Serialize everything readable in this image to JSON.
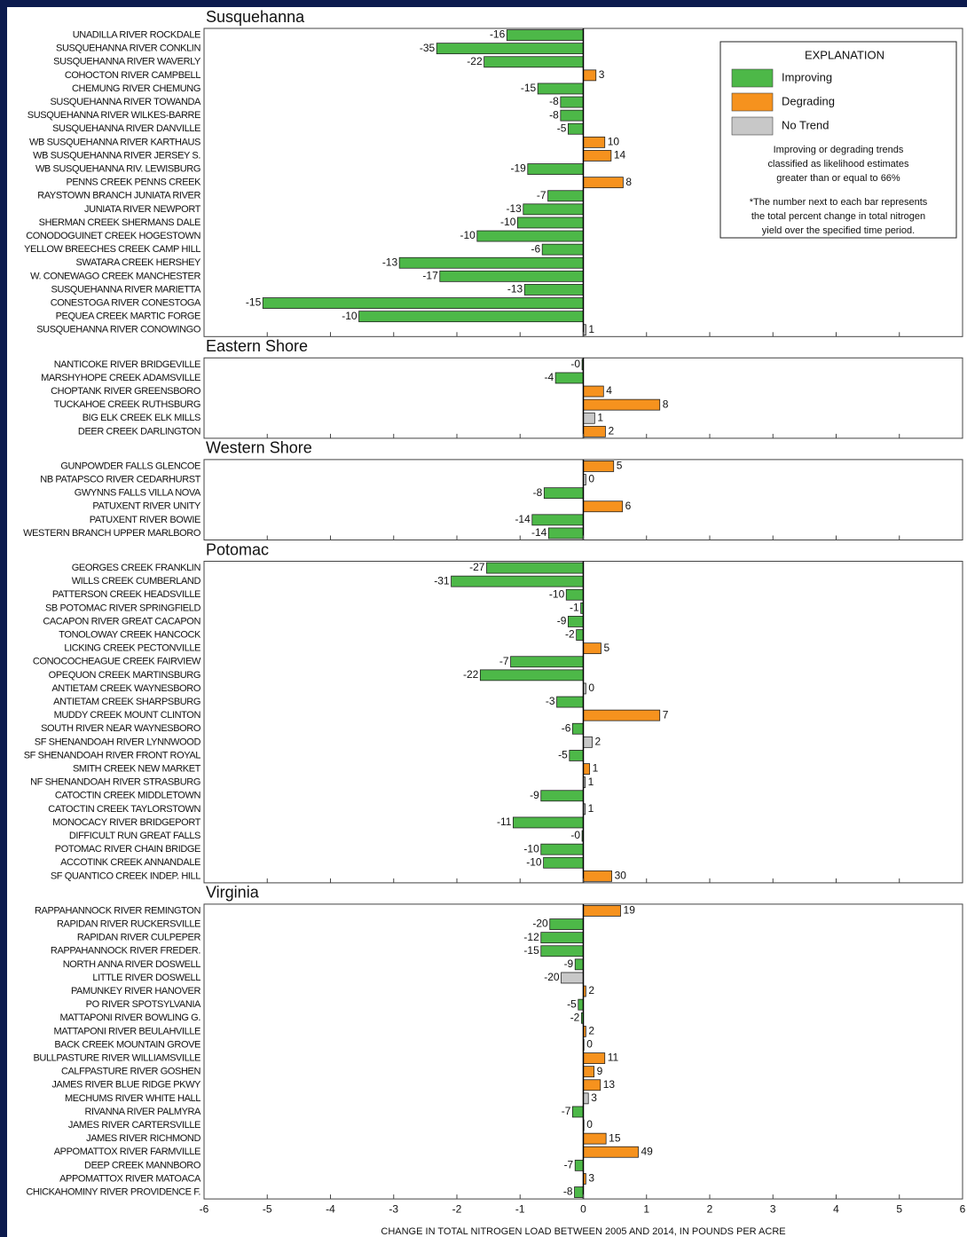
{
  "chart_data": [
    {
      "type": "bar",
      "orientation": "horizontal",
      "title": "Susquehanna",
      "categories": [
        "UNADILLA RIVER ROCKDALE",
        "SUSQUEHANNA RIVER CONKLIN",
        "SUSQUEHANNA RIVER WAVERLY",
        "COHOCTON RIVER CAMPBELL",
        "CHEMUNG RIVER CHEMUNG",
        "SUSQUEHANNA RIVER TOWANDA",
        "SUSQUEHANNA RIVER WILKES-BARRE",
        "SUSQUEHANNA RIVER DANVILLE",
        "WB SUSQUEHANNA RIVER KARTHAUS",
        "WB SUSQUEHANNA RIVER JERSEY S.",
        "WB SUSQUEHANNA RIV. LEWISBURG",
        "PENNS CREEK  PENNS CREEK",
        "RAYSTOWN BRANCH JUNIATA RIVER",
        "JUNIATA RIVER NEWPORT",
        "SHERMAN CREEK SHERMANS DALE",
        "CONODOGUINET CREEK HOGESTOWN",
        "YELLOW BREECHES CREEK CAMP HILL",
        "SWATARA CREEK HERSHEY",
        "W. CONEWAGO CREEK MANCHESTER",
        "SUSQUEHANNA RIVER MARIETTA",
        "CONESTOGA RIVER CONESTOGA",
        "PEQUEA CREEK MARTIC FORGE",
        "SUSQUEHANNA RIVER CONOWINGO"
      ],
      "values": [
        -1.21,
        -2.32,
        -1.57,
        0.2,
        -0.72,
        -0.36,
        -0.36,
        -0.24,
        0.34,
        0.44,
        -0.88,
        0.63,
        -0.56,
        -0.95,
        -1.04,
        -1.68,
        -0.65,
        -2.91,
        -2.27,
        -0.93,
        -5.07,
        -3.55,
        0.04
      ],
      "percent_labels": [
        "-16",
        "-35",
        "-22",
        "3",
        "-15",
        "-8",
        "-8",
        "-5",
        "10",
        "14",
        "-19",
        "8",
        "-7",
        "-13",
        "-10",
        "-10",
        "-6",
        "-13",
        "-17",
        "-13",
        "-15",
        "-10",
        "1"
      ],
      "colors": [
        "#4db848",
        "#4db848",
        "#4db848",
        "#f6921e",
        "#4db848",
        "#4db848",
        "#4db848",
        "#4db848",
        "#f6921e",
        "#f6921e",
        "#4db848",
        "#f6921e",
        "#4db848",
        "#4db848",
        "#4db848",
        "#4db848",
        "#4db848",
        "#4db848",
        "#4db848",
        "#4db848",
        "#4db848",
        "#4db848",
        "#c8c8c8"
      ],
      "xlim": [
        -6,
        6
      ],
      "xticks": [
        -6,
        -5,
        -4,
        -3,
        -2,
        -1,
        0,
        1,
        2,
        3,
        4,
        5,
        6
      ],
      "legend": {
        "title": "EXPLANATION",
        "entries": [
          {
            "name": "Improving",
            "color": "#4db848"
          },
          {
            "name": "Degrading",
            "color": "#f6921e"
          },
          {
            "name": "No Trend",
            "color": "#c8c8c8"
          }
        ],
        "notes": [
          [
            "Improving or degrading trends",
            "classified as likelihood estimates",
            "greater than or equal to 66%"
          ],
          [
            "*The number next to each bar represents",
            "the total percent change in total nitrogen",
            "yield over the specified time period."
          ]
        ]
      }
    },
    {
      "type": "bar",
      "orientation": "horizontal",
      "title": "Eastern Shore",
      "categories": [
        "NANTICOKE RIVER BRIDGEVILLE",
        "MARSHYHOPE CREEK ADAMSVILLE",
        "CHOPTANK RIVER GREENSBORO",
        "TUCKAHOE CREEK RUTHSBURG",
        "BIG ELK CREEK ELK MILLS",
        "DEER CREEK DARLINGTON"
      ],
      "values": [
        -0.02,
        -0.44,
        0.32,
        1.21,
        0.18,
        0.35
      ],
      "percent_labels": [
        "-0",
        "-4",
        "4",
        "8",
        "1",
        "2"
      ],
      "colors": [
        "#4db848",
        "#4db848",
        "#f6921e",
        "#f6921e",
        "#c8c8c8",
        "#f6921e"
      ],
      "xlim": [
        -6,
        6
      ],
      "xticks": [
        -6,
        -5,
        -4,
        -3,
        -2,
        -1,
        0,
        1,
        2,
        3,
        4,
        5,
        6
      ]
    },
    {
      "type": "bar",
      "orientation": "horizontal",
      "title": "Western Shore",
      "categories": [
        "GUNPOWDER FALLS GLENCOE",
        "NB PATAPSCO RIVER CEDARHURST",
        "GWYNNS FALLS VILLA NOVA",
        "PATUXENT RIVER UNITY",
        "PATUXENT RIVER BOWIE",
        "WESTERN BRANCH UPPER MARLBORO"
      ],
      "values": [
        0.48,
        0.04,
        -0.62,
        0.62,
        -0.81,
        -0.55
      ],
      "percent_labels": [
        "5",
        "0",
        "-8",
        "6",
        "-14",
        "-14"
      ],
      "colors": [
        "#f6921e",
        "#c8c8c8",
        "#4db848",
        "#f6921e",
        "#4db848",
        "#4db848"
      ],
      "xlim": [
        -6,
        6
      ],
      "xticks": [
        -6,
        -5,
        -4,
        -3,
        -2,
        -1,
        0,
        1,
        2,
        3,
        4,
        5,
        6
      ]
    },
    {
      "type": "bar",
      "orientation": "horizontal",
      "title": "Potomac",
      "categories": [
        "GEORGES CREEK FRANKLIN",
        "WILLS CREEK CUMBERLAND",
        "PATTERSON CREEK HEADSVILLE",
        "SB POTOMAC RIVER SPRINGFIELD",
        "CACAPON RIVER GREAT CACAPON",
        "TONOLOWAY CREEK HANCOCK",
        "LICKING CREEK PECTONVILLE",
        "CONOCOCHEAGUE CREEK FAIRVIEW",
        "OPEQUON CREEK MARTINSBURG",
        "ANTIETAM CREEK WAYNESBORO",
        "ANTIETAM CREEK SHARPSBURG",
        "MUDDY CREEK MOUNT CLINTON",
        "SOUTH RIVER NEAR WAYNESBORO",
        "SF SHENANDOAH RIVER LYNNWOOD",
        "SF SHENANDOAH RIVER FRONT ROYAL",
        "SMITH CREEK NEW MARKET",
        "NF SHENANDOAH RIVER STRASBURG",
        "CATOCTIN CREEK MIDDLETOWN",
        "CATOCTIN CREEK TAYLORSTOWN",
        "MONOCACY RIVER BRIDGEPORT",
        "DIFFICULT RUN GREAT FALLS",
        "POTOMAC RIVER CHAIN BRIDGE",
        "ACCOTINK CREEK ANNANDALE",
        "SF QUANTICO CREEK INDEP. HILL"
      ],
      "values": [
        -1.53,
        -2.09,
        -0.27,
        -0.04,
        -0.24,
        -0.11,
        0.28,
        -1.15,
        -1.63,
        0.04,
        -0.42,
        1.21,
        -0.17,
        0.14,
        -0.22,
        0.1,
        0.03,
        -0.67,
        0.03,
        -1.11,
        -0.02,
        -0.67,
        -0.63,
        0.45
      ],
      "percent_labels": [
        "-27",
        "-31",
        "-10",
        "-1",
        "-9",
        "-2",
        "5",
        "-7",
        "-22",
        "0",
        "-3",
        "7",
        "-6",
        "2",
        "-5",
        "1",
        "1",
        "-9",
        "1",
        "-11",
        "-0",
        "-10",
        "-10",
        "30"
      ],
      "colors": [
        "#4db848",
        "#4db848",
        "#4db848",
        "#4db848",
        "#4db848",
        "#4db848",
        "#f6921e",
        "#4db848",
        "#4db848",
        "#c8c8c8",
        "#4db848",
        "#f6921e",
        "#4db848",
        "#c8c8c8",
        "#4db848",
        "#f6921e",
        "#c8c8c8",
        "#4db848",
        "#c8c8c8",
        "#4db848",
        "#4db848",
        "#4db848",
        "#4db848",
        "#f6921e"
      ],
      "xlim": [
        -6,
        6
      ],
      "xticks": [
        -6,
        -5,
        -4,
        -3,
        -2,
        -1,
        0,
        1,
        2,
        3,
        4,
        5,
        6
      ]
    },
    {
      "type": "bar",
      "orientation": "horizontal",
      "title": "Virginia",
      "categories": [
        "RAPPAHANNOCK RIVER REMINGTON",
        "RAPIDAN RIVER RUCKERSVILLE",
        "RAPIDAN RIVER CULPEPER",
        "RAPPAHANNOCK RIVER FREDER.",
        "NORTH ANNA RIVER DOSWELL",
        "LITTLE RIVER DOSWELL",
        "PAMUNKEY RIVER HANOVER",
        "PO RIVER SPOTSYLVANIA",
        "MATTAPONI RIVER BOWLING G.",
        "MATTAPONI RIVER BEULAHVILLE",
        "BACK CREEK MOUNTAIN GROVE",
        "BULLPASTURE RIVER WILLIAMSVILLE",
        "CALFPASTURE RIVER  GOSHEN",
        "JAMES RIVER BLUE RIDGE PKWY",
        "MECHUMS RIVER WHITE HALL",
        "RIVANNA RIVER PALMYRA",
        "JAMES RIVER CARTERSVILLE",
        "JAMES RIVER RICHMOND",
        "APPOMATTOX RIVER FARMVILLE",
        "DEEP CREEK MANNBORO",
        "APPOMATTOX RIVER MATOACA",
        "CHICKAHOMINY RIVER PROVIDENCE F."
      ],
      "values": [
        0.59,
        -0.53,
        -0.67,
        -0.67,
        -0.13,
        -0.35,
        0.04,
        -0.08,
        -0.03,
        0.04,
        0.01,
        0.34,
        0.17,
        0.27,
        0.08,
        -0.17,
        0.01,
        0.36,
        0.87,
        -0.13,
        0.04,
        -0.14
      ],
      "percent_labels": [
        "19",
        "-20",
        "-12",
        "-15",
        "-9",
        "-20",
        "2",
        "-5",
        "-2",
        "2",
        "0",
        "11",
        "9",
        "13",
        "3",
        "-7",
        "0",
        "15",
        "49",
        "-7",
        "3",
        "-8"
      ],
      "colors": [
        "#f6921e",
        "#4db848",
        "#4db848",
        "#4db848",
        "#4db848",
        "#c8c8c8",
        "#f6921e",
        "#4db848",
        "#4db848",
        "#f6921e",
        "#c8c8c8",
        "#f6921e",
        "#f6921e",
        "#f6921e",
        "#c8c8c8",
        "#4db848",
        "#f6921e",
        "#f6921e",
        "#f6921e",
        "#4db848",
        "#f6921e",
        "#4db848"
      ],
      "xlim": [
        -6,
        6
      ],
      "xticks": [
        -6,
        -5,
        -4,
        -3,
        -2,
        -1,
        0,
        1,
        2,
        3,
        4,
        5,
        6
      ],
      "xlabel": "CHANGE IN TOTAL NITROGEN LOAD BETWEEN 2005 AND 2014, IN POUNDS PER ACRE"
    }
  ]
}
